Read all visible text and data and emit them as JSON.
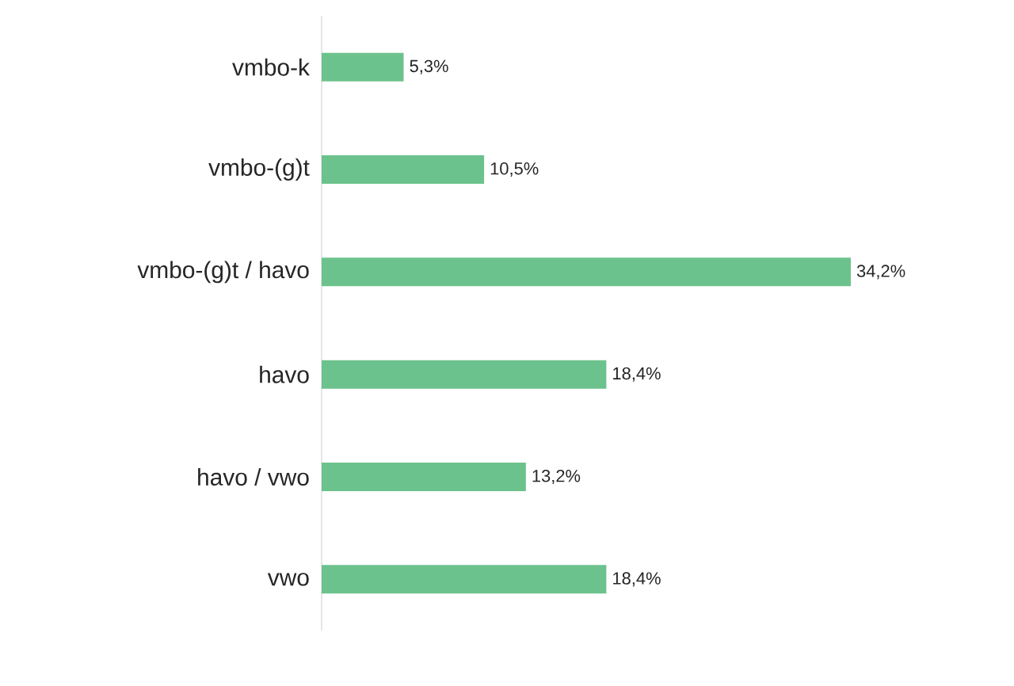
{
  "chart_data": {
    "type": "bar",
    "orientation": "horizontal",
    "categories": [
      "vmbo-k",
      "vmbo-(g)t",
      "vmbo-(g)t / havo",
      "havo",
      "havo / vwo",
      "vwo"
    ],
    "values": [
      5.3,
      10.5,
      34.2,
      18.4,
      13.2,
      18.4
    ],
    "value_labels": [
      "5,3%",
      "10,5%",
      "34,2%",
      "18,4%",
      "13,2%",
      "18,4%"
    ],
    "color": "#6cc28c"
  }
}
